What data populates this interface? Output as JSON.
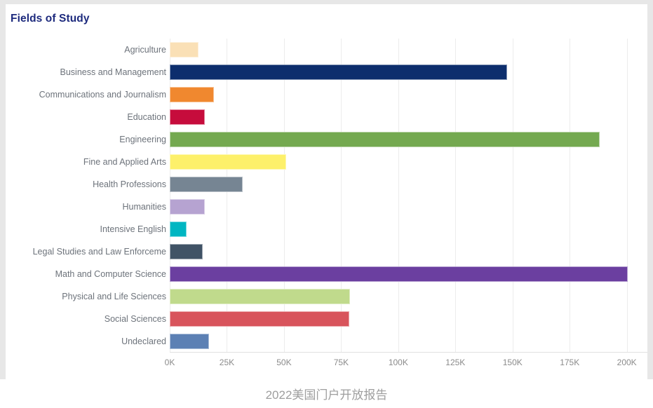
{
  "page": {
    "caption": "2022美国门户开放报告",
    "background": "#ffffff"
  },
  "chart": {
    "title": "Fields of Study",
    "title_color": "#1d2a7d",
    "widget_background": "#e7e7e7",
    "surface_background": "#ffffff",
    "grid_color": "#ececec",
    "axis_line_color": "#e0e0e0",
    "category_label_color": "#6d737b",
    "tick_label_color": "#8b8b8b",
    "caption_color": "#9e9e9e"
  },
  "chart_data": {
    "type": "bar",
    "orientation": "horizontal",
    "title": "Fields of Study",
    "xlabel": "",
    "ylabel": "",
    "grid": true,
    "legend": false,
    "x_axis_max": 209000,
    "x_tick_interval": 25000,
    "x_ticks": [
      "0K",
      "25K",
      "50K",
      "75K",
      "100K",
      "125K",
      "150K",
      "175K",
      "200K"
    ],
    "categories": [
      "Agriculture",
      "Business and Management",
      "Communications and Journalism",
      "Education",
      "Engineering",
      "Fine and Applied Arts",
      "Health Professions",
      "Humanities",
      "Intensive English",
      "Legal Studies and Law Enforceme",
      "Math and Computer Science",
      "Physical and Life Sciences",
      "Social Sciences",
      "Undeclared"
    ],
    "values": [
      12600,
      147500,
      19300,
      15200,
      188000,
      51000,
      32000,
      15300,
      7400,
      14300,
      200300,
      79000,
      78700,
      17200
    ],
    "colors": [
      "#FAE0B6",
      "#0D2E6D",
      "#F0882F",
      "#C60C3C",
      "#74A950",
      "#FDF06A",
      "#768593",
      "#B6A3D1",
      "#00B6C2",
      "#405366",
      "#6B3FA0",
      "#C0DA8C",
      "#D8545C",
      "#5C80B4"
    ]
  }
}
